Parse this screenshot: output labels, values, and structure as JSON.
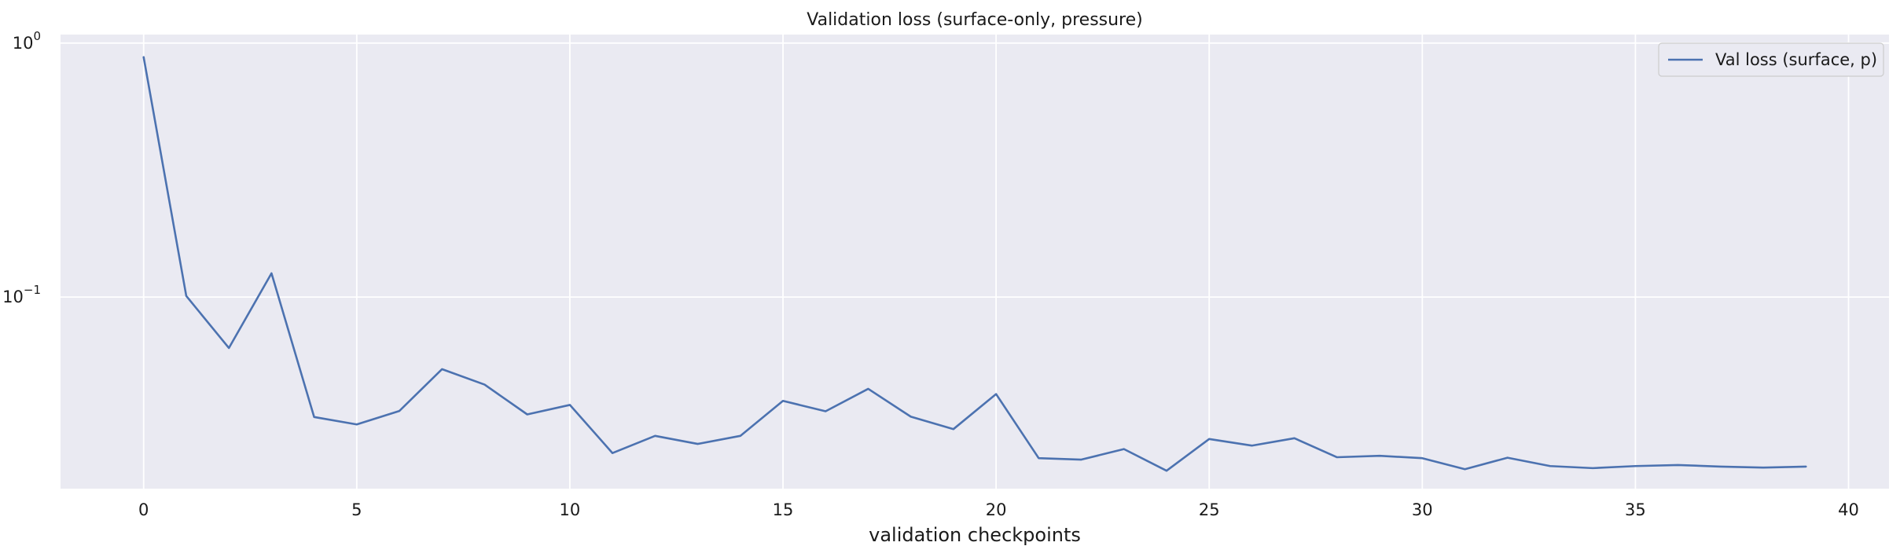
{
  "chart_data": {
    "type": "line",
    "title": "Validation loss (surface-only, pressure)",
    "xlabel": "validation checkpoints",
    "ylabel": "",
    "yscale": "log",
    "grid": true,
    "legend_position": "top-right",
    "xlim": [
      -1.95,
      40.95
    ],
    "ylim": [
      0.0176,
      1.08
    ],
    "xticks": [
      0,
      5,
      10,
      15,
      20,
      25,
      30,
      35,
      40
    ],
    "yticks": [
      {
        "value": 1.0,
        "base": "10",
        "exp": "0"
      },
      {
        "value": 0.1,
        "base": "10",
        "exp": "−1"
      }
    ],
    "series": [
      {
        "name": "Val loss (surface, p)",
        "color": "#4c72b0",
        "x": [
          0,
          1,
          2,
          3,
          4,
          5,
          6,
          7,
          8,
          9,
          10,
          11,
          12,
          13,
          14,
          15,
          16,
          17,
          18,
          19,
          20,
          21,
          22,
          23,
          24,
          25,
          26,
          27,
          28,
          29,
          30,
          31,
          32,
          33,
          34,
          35,
          36,
          37,
          38,
          39
        ],
        "values": [
          0.88,
          0.101,
          0.063,
          0.124,
          0.0337,
          0.0315,
          0.0356,
          0.052,
          0.0452,
          0.0345,
          0.0376,
          0.0243,
          0.0284,
          0.0264,
          0.0284,
          0.039,
          0.0355,
          0.0435,
          0.0338,
          0.0302,
          0.0415,
          0.0232,
          0.0229,
          0.0252,
          0.0207,
          0.0276,
          0.026,
          0.0278,
          0.0234,
          0.0237,
          0.0232,
          0.021,
          0.0233,
          0.0216,
          0.0212,
          0.0216,
          0.0218,
          0.0215,
          0.0213,
          0.0215
        ]
      }
    ]
  }
}
